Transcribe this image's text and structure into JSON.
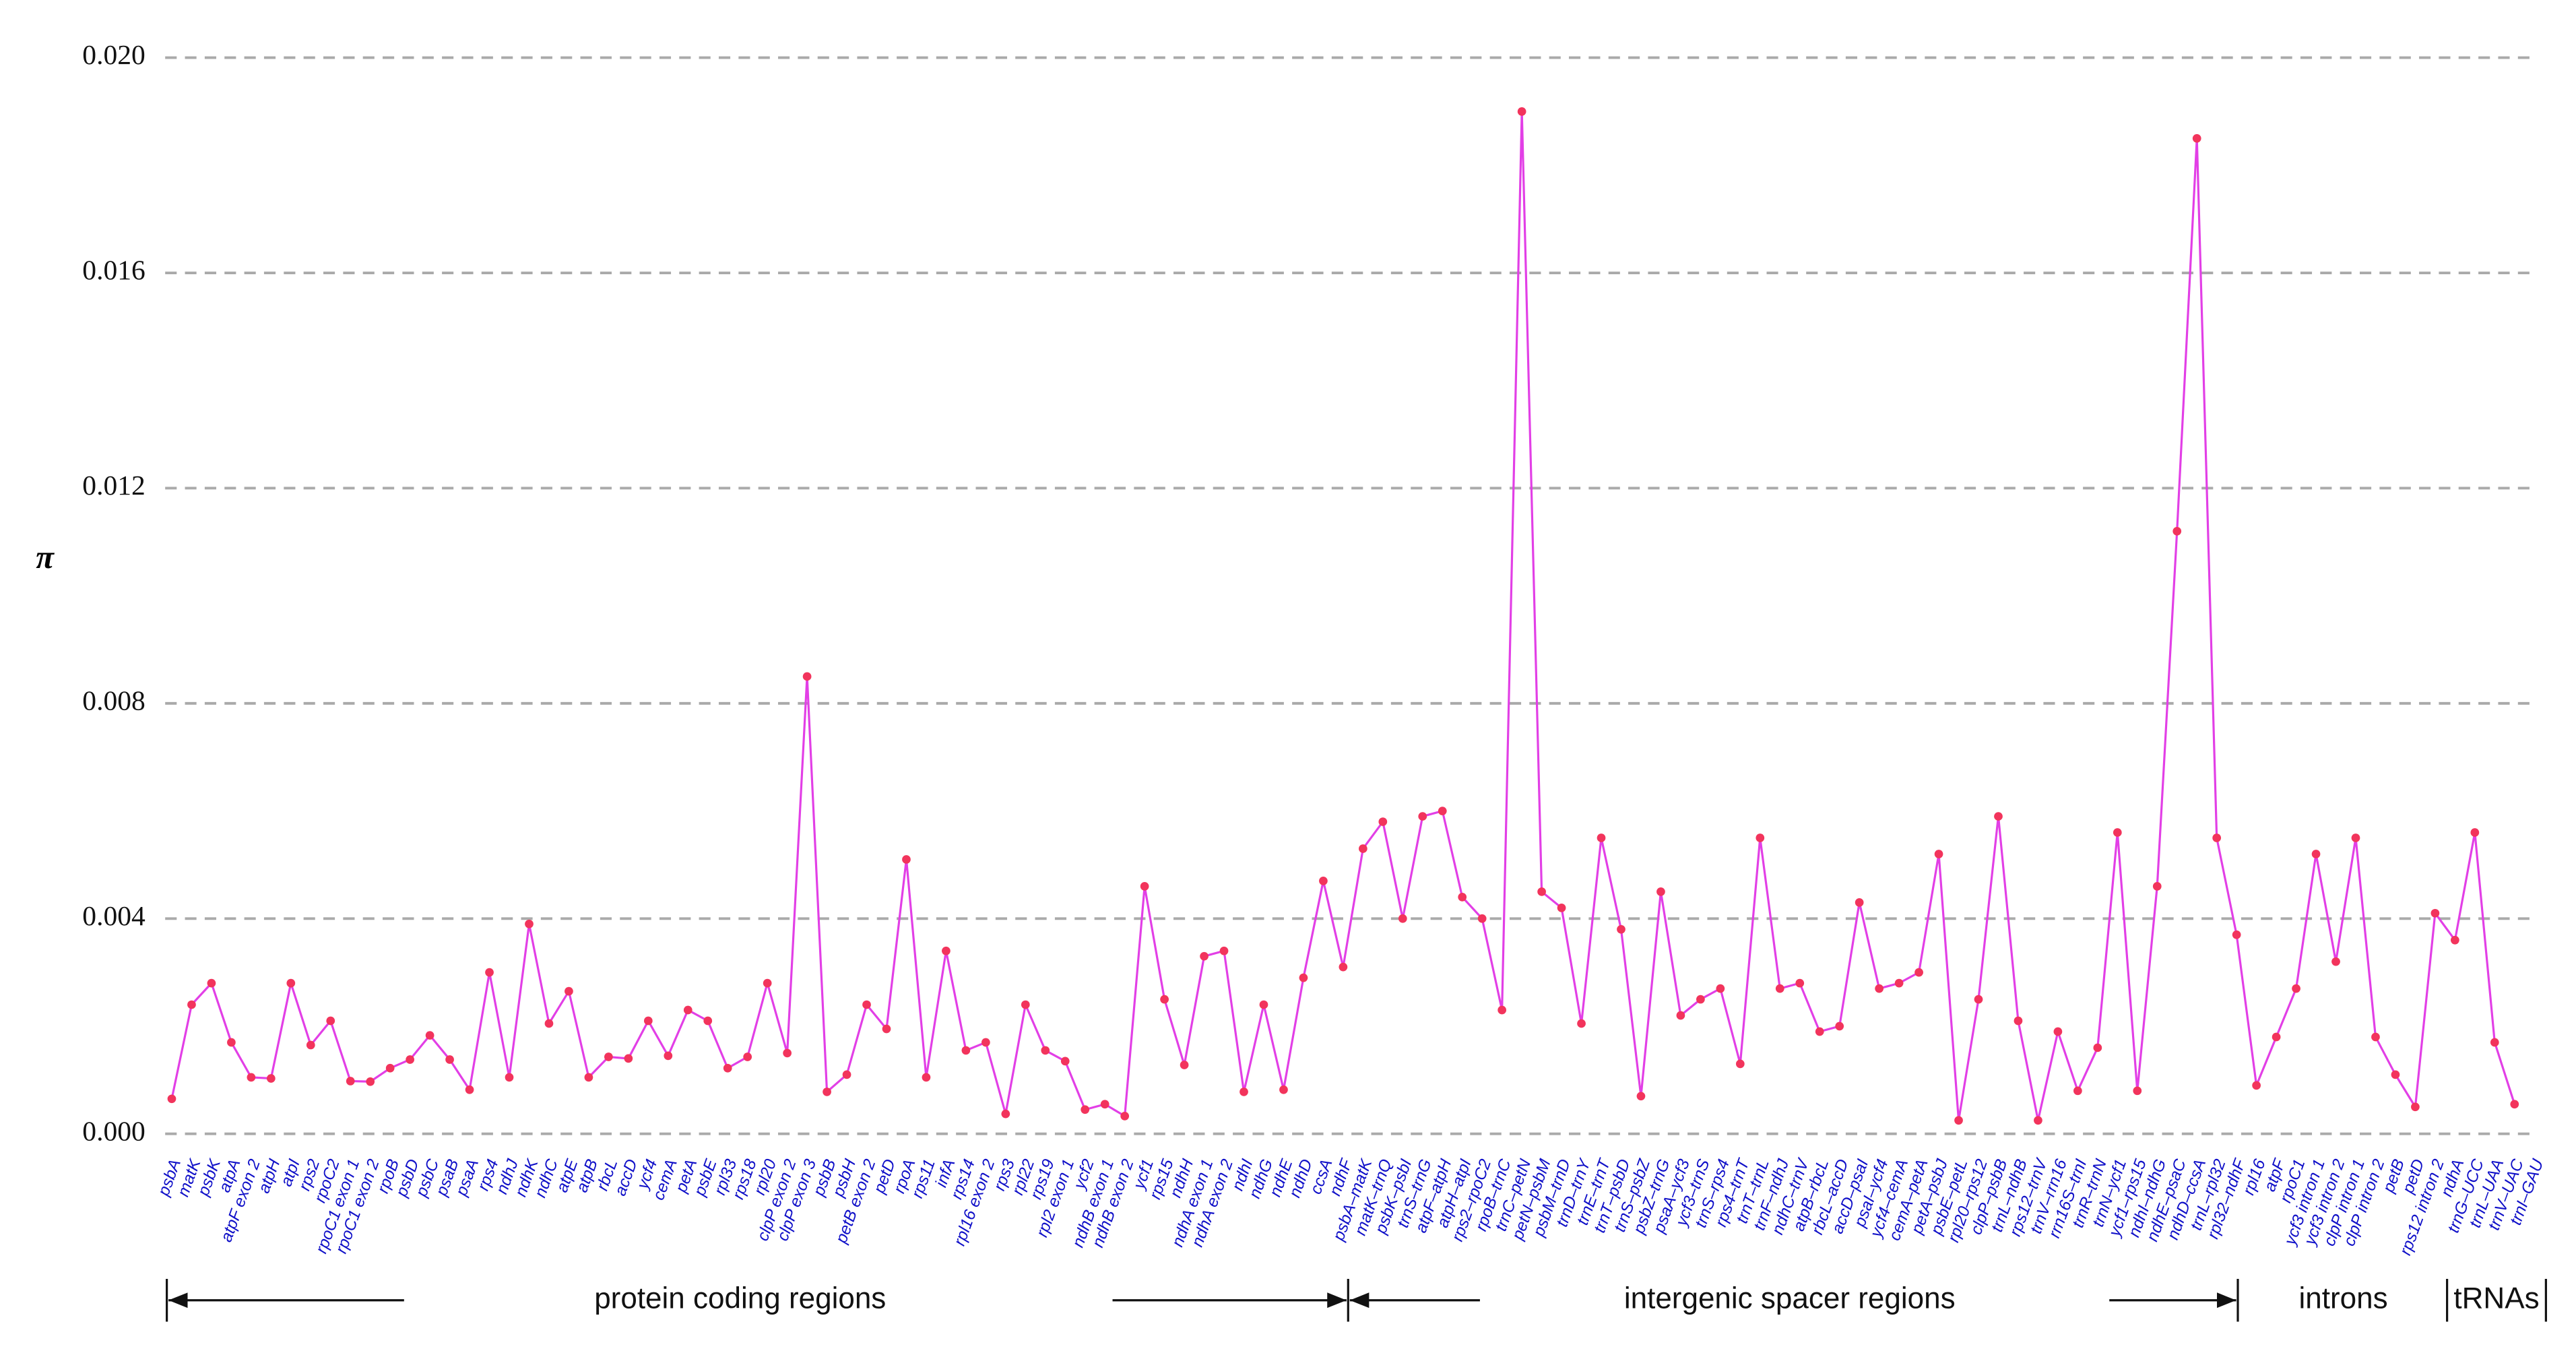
{
  "chart_data": {
    "type": "line",
    "y_label": "π",
    "categories": [
      "psbA",
      "matK",
      "psbK",
      "atpA",
      "atpF exon 2",
      "atpH",
      "atpI",
      "rps2",
      "rpoC2",
      "rpoC1 exon 1",
      "rpoC1 exon 2",
      "rpoB",
      "psbD",
      "psbC",
      "psaB",
      "psaA",
      "rps4",
      "ndhJ",
      "ndhK",
      "ndhC",
      "atpE",
      "atpB",
      "rbcL",
      "accD",
      "ycf4",
      "cemA",
      "petA",
      "psbE",
      "rpl33",
      "rps18",
      "rpl20",
      "clpP exon 2",
      "clpP exon 3",
      "psbB",
      "psbH",
      "petB exon 2",
      "petD",
      "rpoA",
      "rps11",
      "infA",
      "rps14",
      "rpl16 exon 2",
      "rps3",
      "rpl22",
      "rps19",
      "rpl2 exon 1",
      "ycf2",
      "ndhB exon 1",
      "ndhB exon 2",
      "ycf1",
      "rps15",
      "ndhH",
      "ndhA exon 1",
      "ndhA exon 2",
      "ndhI",
      "ndhG",
      "ndhE",
      "ndhD",
      "ccsA",
      "ndhF",
      "psbA–matK",
      "matK–trnQ",
      "psbK–psbI",
      "trnS–trnG",
      "atpF–atpH",
      "atpH–atpI",
      "rps2–rpoC2",
      "rpoB–trnC",
      "trnC–petN",
      "petN–psbM",
      "psbM–trnD",
      "trnD–trnY",
      "trnE–trnT",
      "trnT–psbD",
      "trnS–psbZ",
      "psbZ–trnG",
      "psaA–ycf3",
      "ycf3–trnS",
      "trnS–rps4",
      "rps4–trnT",
      "trnT–trnL",
      "trnF–ndhJ",
      "ndhC–trnV",
      "atpB–rbcL",
      "rbcL–accD",
      "accD–psaI",
      "psaI–ycf4",
      "ycf4–cemA",
      "cemA–petA",
      "petA–psbJ",
      "psbE–petL",
      "rpl20–rps12",
      "clpP–psbB",
      "trnL–ndhB",
      "rps12–trnV",
      "trnV–rrn16",
      "rrn16S–trnI",
      "trnR–trnN",
      "trnN–ycf1",
      "ycf1–rps15",
      "ndhI–ndhG",
      "ndhE–psaC",
      "ndhD–ccsA",
      "trnL–rpl32",
      "rpl32–ndhF",
      "rpl16",
      "atpF",
      "rpoC1",
      "ycf3 intron 1",
      "ycf3 intron 2",
      "clpP intron 1",
      "clpP intron 2",
      "petB",
      "petD",
      "rps12 intron 2",
      "ndhA",
      "trnG–UCC",
      "trnL–UAA",
      "trnV–UAC",
      "trnI–GAU"
    ],
    "values": [
      0.00065,
      0.0024,
      0.0028,
      0.0017,
      0.00105,
      0.00103,
      0.0028,
      0.00165,
      0.0021,
      0.00098,
      0.00097,
      0.00122,
      0.00138,
      0.00183,
      0.00138,
      0.00082,
      0.003,
      0.00105,
      0.0039,
      0.00205,
      0.00265,
      0.00105,
      0.00143,
      0.0014,
      0.0021,
      0.00145,
      0.0023,
      0.0021,
      0.00122,
      0.00143,
      0.0028,
      0.0015,
      0.0085,
      0.00078,
      0.0011,
      0.0024,
      0.00195,
      0.0051,
      0.00105,
      0.0034,
      0.00155,
      0.0017,
      0.00037,
      0.0024,
      0.00155,
      0.00135,
      0.00045,
      0.00055,
      0.00033,
      0.0046,
      0.0025,
      0.00128,
      0.0033,
      0.0034,
      0.00078,
      0.0024,
      0.00082,
      0.0029,
      0.0047,
      0.0031,
      0.0053,
      0.0058,
      0.004,
      0.0059,
      0.006,
      0.0044,
      0.004,
      0.0023,
      0.019,
      0.0045,
      0.0042,
      0.00205,
      0.0055,
      0.0038,
      0.0007,
      0.0045,
      0.0022,
      0.0025,
      0.0027,
      0.0013,
      0.0055,
      0.0027,
      0.0028,
      0.0019,
      0.002,
      0.0043,
      0.0027,
      0.0028,
      0.003,
      0.0052,
      0.00025,
      0.0025,
      0.0059,
      0.0021,
      0.00025,
      0.0019,
      0.0008,
      0.0016,
      0.0056,
      0.0008,
      0.0046,
      0.0112,
      0.0185,
      0.0055,
      0.0037,
      0.0009,
      0.0018,
      0.0027,
      0.0052,
      0.0032,
      0.0055,
      0.0018,
      0.0011,
      0.0005,
      0.0041,
      0.0036,
      0.0056,
      0.0017,
      0.00055,
      null
    ],
    "color": "#e23fe6",
    "marker_color": "#f2345c",
    "label_color": "#1010c8",
    "ylim": [
      0,
      0.02
    ],
    "yticks": [
      {
        "value": 0,
        "label": "0.000"
      },
      {
        "value": 0.004,
        "label": "0.004"
      },
      {
        "value": 0.008,
        "label": "0.008"
      },
      {
        "value": 0.012,
        "label": "0.012"
      },
      {
        "value": 0.016,
        "label": "0.016"
      },
      {
        "value": 0.02,
        "label": "0.020"
      }
    ],
    "grid": true,
    "annotations": [
      "protein coding regions",
      "intergenic spacer regions",
      "introns",
      "tRNAs"
    ]
  }
}
